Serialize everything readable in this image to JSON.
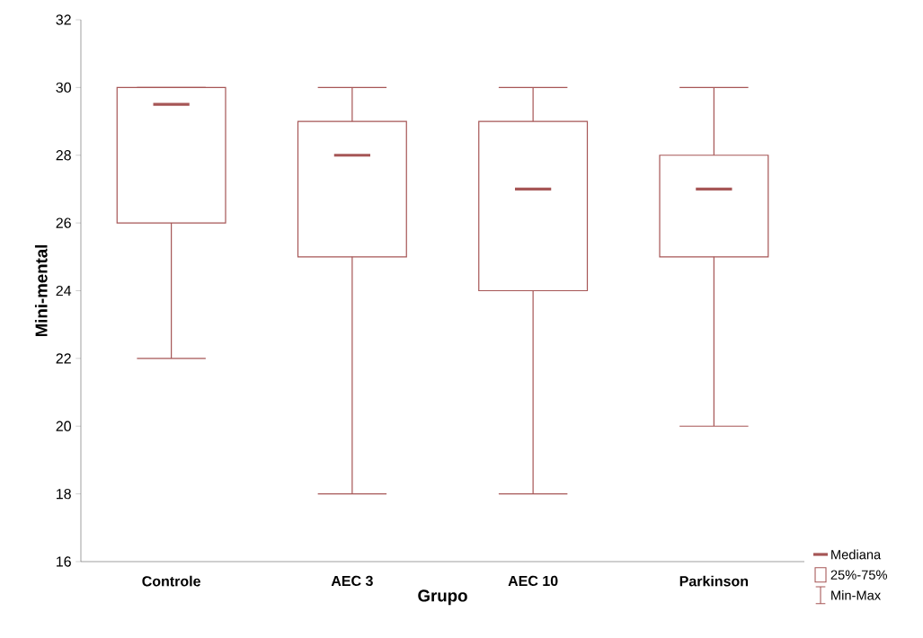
{
  "chart_data": {
    "type": "box",
    "xlabel": "Grupo",
    "ylabel": "Mini-mental",
    "categories": [
      "Controle",
      "AEC 3",
      "AEC 10",
      "Parkinson"
    ],
    "series": [
      {
        "color": "#a65656",
        "boxes": [
          {
            "low": 22,
            "q1": 26,
            "median": 29.5,
            "q3": 30,
            "high": 30
          },
          {
            "low": 18,
            "q1": 25,
            "median": 28,
            "q3": 29,
            "high": 30
          },
          {
            "low": 18,
            "q1": 24,
            "median": 27,
            "q3": 29,
            "high": 30
          },
          {
            "low": 20,
            "q1": 25,
            "median": 27,
            "q3": 28,
            "high": 30
          }
        ]
      }
    ],
    "ylim": [
      16,
      32
    ],
    "yticks": [
      16,
      18,
      20,
      22,
      24,
      26,
      28,
      30,
      32
    ],
    "grid": false,
    "annotations": [
      "Mediana",
      "25%-75%",
      "Min-Max"
    ]
  }
}
